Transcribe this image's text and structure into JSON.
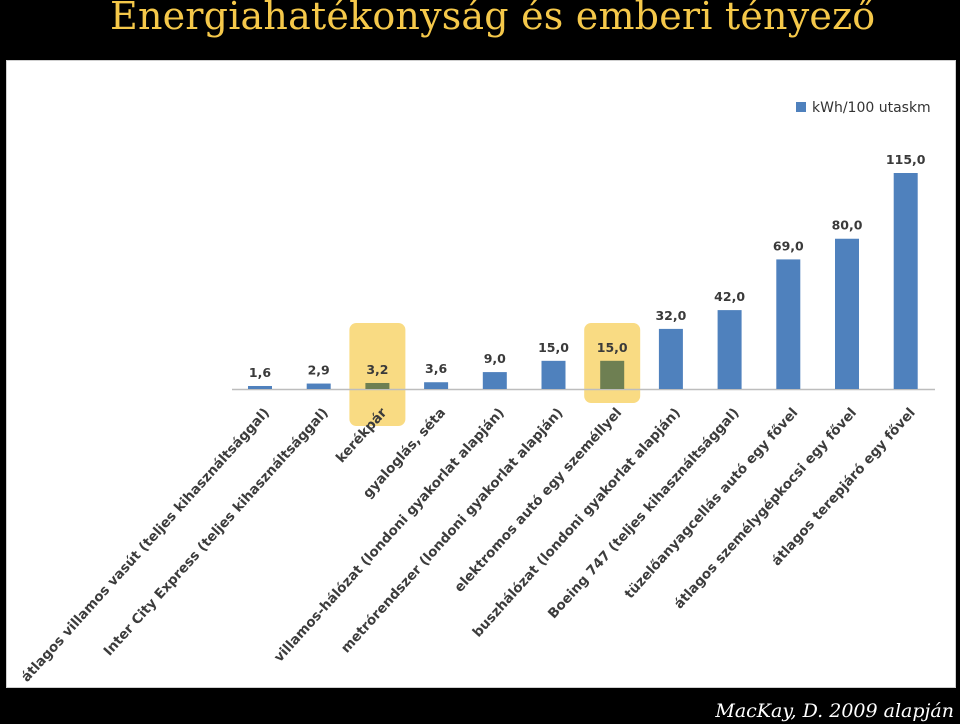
{
  "slide": {
    "title": "Energiahatékonyság és emberi tényező",
    "credit": "MacKay, D. 2009 alapján"
  },
  "colors": {
    "background": "#000000",
    "title": "#f5c84a",
    "bar": "#4f81bd",
    "highlight": "#f5c330",
    "highlight_bar": "#6e7f52"
  },
  "chart_data": {
    "type": "bar",
    "title": "",
    "xlabel": "",
    "ylabel": "",
    "legend": "top-right",
    "grid": false,
    "ylim": [
      0,
      130
    ],
    "categories": [
      "átlagos villamos vasút (teljes kihasználtsággal)",
      "Inter City Express (teljes kihasználtsággal)",
      "kerékpár",
      "gyaloglás, séta",
      "villamos-hálózat (londoni gyakorlat alapján)",
      "metrórendszer (londoni gyakorlat alapján)",
      "elektromos autó egy személlyel",
      "buszhálózat (londoni gyakorlat alapján)",
      "Boeing 747 (teljes kihasználtsággal)",
      "tüzelőanyagcellás autó egy fővel",
      "átlagos személygépkocsi egy fővel",
      "átlagos terepjáró egy fővel"
    ],
    "series": [
      {
        "name": "kWh/100 utaskm",
        "values": [
          1.6,
          2.9,
          3.2,
          3.6,
          9.0,
          15.0,
          15.0,
          32.0,
          42.0,
          69.0,
          80.0,
          115.0
        ],
        "value_labels": [
          "1,6",
          "2,9",
          "3,2",
          "3,6",
          "9,0",
          "15,0",
          "15,0",
          "32,0",
          "42,0",
          "69,0",
          "80,0",
          "115,0"
        ]
      }
    ],
    "highlighted_categories": [
      "kerékpár",
      "elektromos autó egy személlyel"
    ]
  }
}
